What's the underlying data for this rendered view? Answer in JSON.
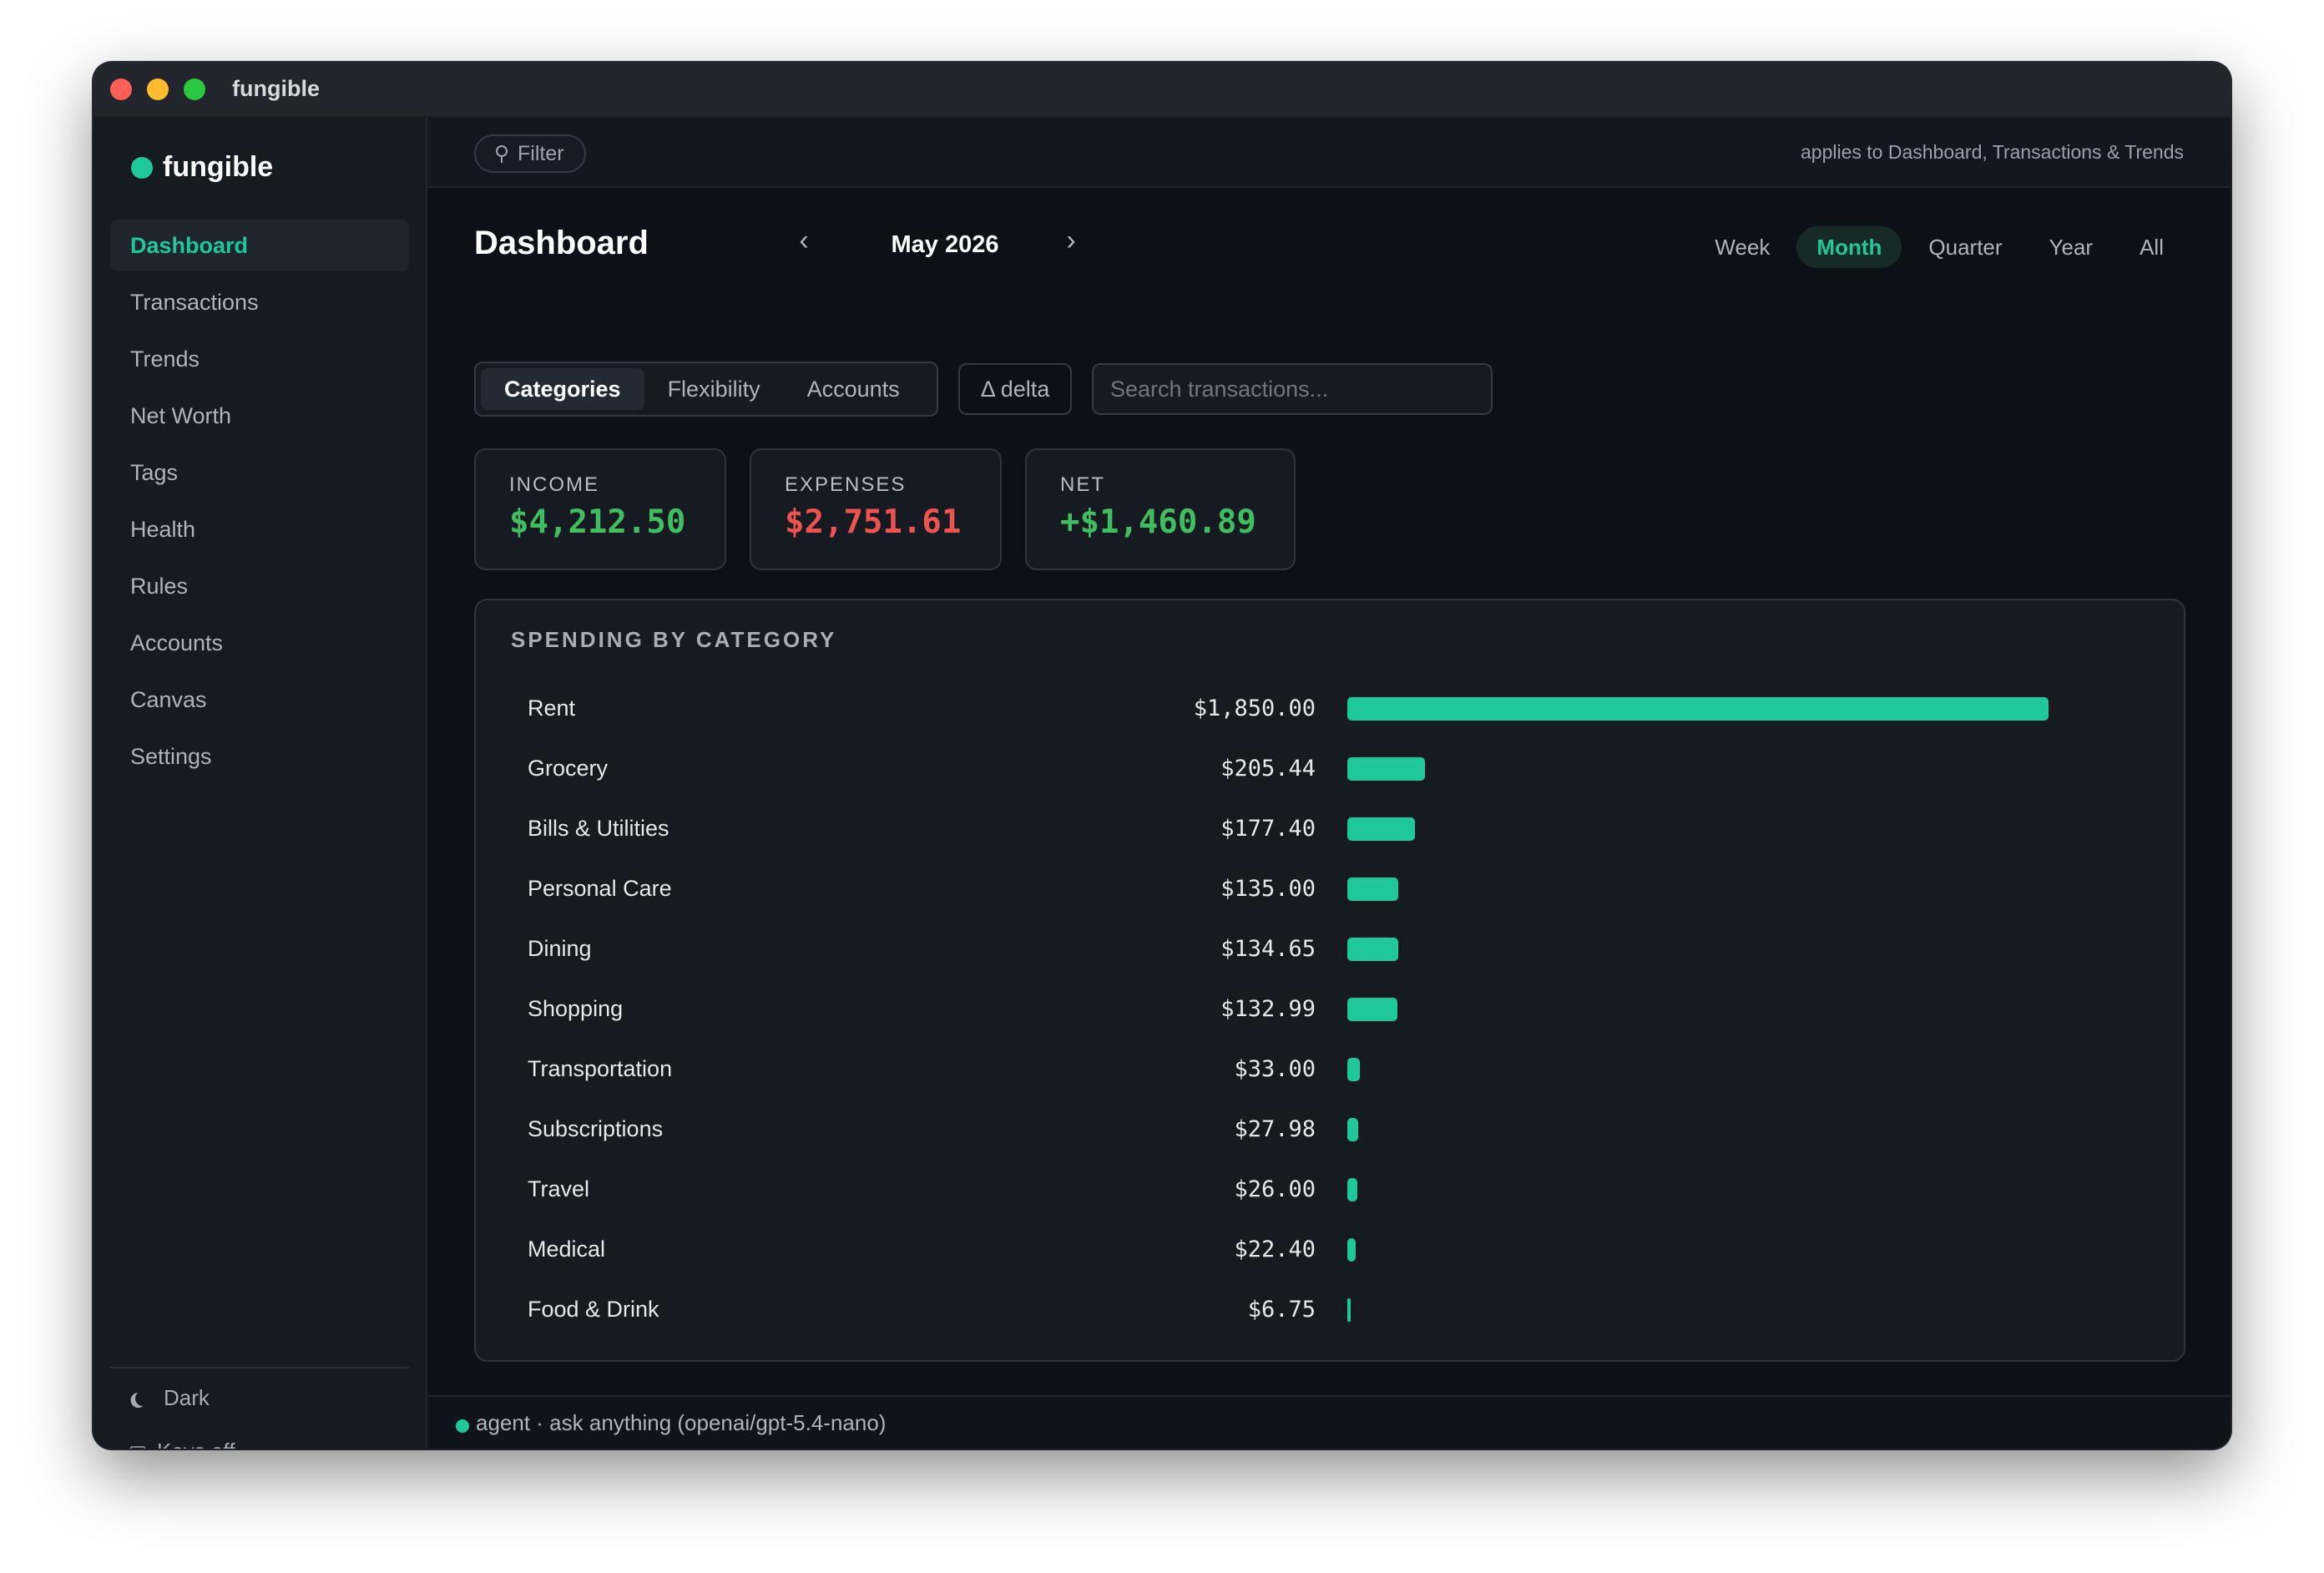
{
  "window": {
    "title": "fungible"
  },
  "sidebar": {
    "brand": "fungible",
    "items": [
      {
        "label": "Dashboard",
        "active": true
      },
      {
        "label": "Transactions"
      },
      {
        "label": "Trends"
      },
      {
        "label": "Net Worth"
      },
      {
        "label": "Tags"
      },
      {
        "label": "Health"
      },
      {
        "label": "Rules"
      },
      {
        "label": "Accounts"
      },
      {
        "label": "Canvas"
      },
      {
        "label": "Settings"
      }
    ],
    "theme_label": "Dark",
    "keys_label": "Keys off"
  },
  "filterbar": {
    "filter_label": "Filter",
    "note": "applies to Dashboard, Transactions & Trends"
  },
  "header": {
    "title": "Dashboard",
    "prev": "‹",
    "next": "›",
    "period": "May 2026",
    "ranges": [
      "Week",
      "Month",
      "Quarter",
      "Year",
      "All"
    ],
    "active_range": "Month"
  },
  "views": {
    "tabs": [
      "Categories",
      "Flexibility",
      "Accounts"
    ],
    "active_tab": "Categories",
    "delta_label": "Δ delta",
    "search_placeholder": "Search transactions..."
  },
  "stats": {
    "income": {
      "label": "INCOME",
      "value": "$4,212.50",
      "color": "#3fbf5f"
    },
    "expenses": {
      "label": "EXPENSES",
      "value": "$2,751.61",
      "color": "#ef5350"
    },
    "net": {
      "label": "NET",
      "value": "+$1,460.89",
      "color": "#3fbf5f"
    }
  },
  "spending": {
    "title": "SPENDING BY CATEGORY",
    "bar_color": "#1fc89b",
    "categories": [
      {
        "name": "Rent",
        "amount_label": "$1,850.00",
        "amount": 1850.0
      },
      {
        "name": "Grocery",
        "amount_label": "$205.44",
        "amount": 205.44
      },
      {
        "name": "Bills & Utilities",
        "amount_label": "$177.40",
        "amount": 177.4
      },
      {
        "name": "Personal Care",
        "amount_label": "$135.00",
        "amount": 135.0
      },
      {
        "name": "Dining",
        "amount_label": "$134.65",
        "amount": 134.65
      },
      {
        "name": "Shopping",
        "amount_label": "$132.99",
        "amount": 132.99
      },
      {
        "name": "Transportation",
        "amount_label": "$33.00",
        "amount": 33.0
      },
      {
        "name": "Subscriptions",
        "amount_label": "$27.98",
        "amount": 27.98
      },
      {
        "name": "Travel",
        "amount_label": "$26.00",
        "amount": 26.0
      },
      {
        "name": "Medical",
        "amount_label": "$22.40",
        "amount": 22.4
      },
      {
        "name": "Food & Drink",
        "amount_label": "$6.75",
        "amount": 6.75
      }
    ]
  },
  "agent": {
    "text": "agent · ask anything (openai/gpt-5.4-nano)"
  }
}
